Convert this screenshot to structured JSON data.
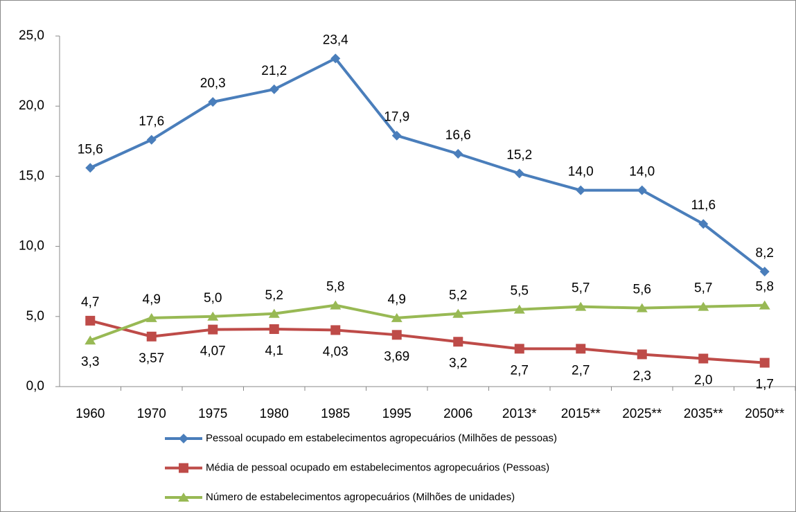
{
  "chart_data": {
    "type": "line",
    "categories": [
      "1960",
      "1970",
      "1975",
      "1980",
      "1985",
      "1995",
      "2006",
      "2013*",
      "2015**",
      "2025**",
      "2035**",
      "2050**"
    ],
    "series": [
      {
        "name": "Pessoal ocupado em estabelecimentos agropecuários (Milhões de pessoas)",
        "color": "#4a7ebb",
        "marker": "diamond",
        "values": [
          15.6,
          17.6,
          20.3,
          21.2,
          23.4,
          17.9,
          16.6,
          15.2,
          14.0,
          14.0,
          11.6,
          8.2
        ],
        "value_labels": [
          "15,6",
          "17,6",
          "20,3",
          "21,2",
          "23,4",
          "17,9",
          "16,6",
          "15,2",
          "14,0",
          "14,0",
          "11,6",
          "8,2"
        ]
      },
      {
        "name": "Média de pessoal ocupado em estabelecimentos agropecuários (Pessoas)",
        "color": "#be4b48",
        "marker": "square",
        "values": [
          4.7,
          3.57,
          4.07,
          4.1,
          4.03,
          3.69,
          3.2,
          2.7,
          2.7,
          2.3,
          2.0,
          1.7
        ],
        "value_labels": [
          "4,7",
          "3,57",
          "4,07",
          "4,1",
          "4,03",
          "3,69",
          "3,2",
          "2,7",
          "2,7",
          "2,3",
          "2,0",
          "1,7"
        ]
      },
      {
        "name": "Número de estabelecimentos agropecuários (Milhões de unidades)",
        "color": "#98b954",
        "marker": "triangle",
        "values": [
          3.3,
          4.9,
          5.0,
          5.2,
          5.8,
          4.9,
          5.2,
          5.5,
          5.7,
          5.6,
          5.7,
          5.8
        ],
        "value_labels": [
          "3,3",
          "4,9",
          "5,0",
          "5,2",
          "5,8",
          "4,9",
          "5,2",
          "5,5",
          "5,7",
          "5,6",
          "5,7",
          "5,8"
        ]
      }
    ],
    "ylim": [
      0,
      25
    ],
    "yticks": [
      {
        "value": 0,
        "label": "0,0"
      },
      {
        "value": 5,
        "label": "5,0"
      },
      {
        "value": 10,
        "label": "10,0"
      },
      {
        "value": 15,
        "label": "15,0"
      },
      {
        "value": 20,
        "label": "20,0"
      },
      {
        "value": 25,
        "label": "25,0"
      }
    ],
    "grid": false,
    "legend": "bottom"
  }
}
